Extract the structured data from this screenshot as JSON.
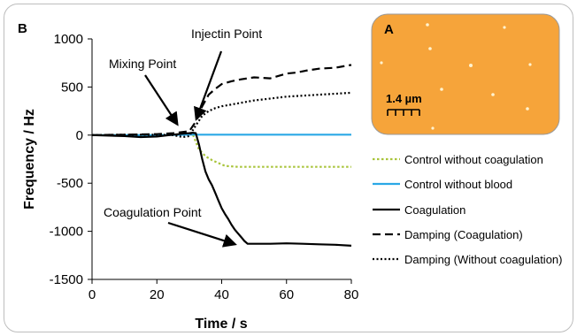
{
  "figure": {
    "panel_b_label": "B",
    "panel_a_label": "A"
  },
  "chart_data": {
    "type": "line",
    "title": "",
    "xlabel": "Time / s",
    "ylabel": "Frequency / Hz",
    "xlim": [
      0,
      80
    ],
    "ylim": [
      -1500,
      1000
    ],
    "xticks": [
      0,
      20,
      40,
      60,
      80
    ],
    "yticks": [
      -1500,
      -1000,
      -500,
      0,
      500,
      1000
    ],
    "grid": false,
    "legend_position": "right",
    "series": [
      {
        "name": "Control without coagulation",
        "color": "#a8c43a",
        "style": "dotted",
        "x": [
          0,
          10,
          20,
          25,
          28,
          31,
          33,
          35,
          37,
          39,
          41,
          45,
          50,
          60,
          70,
          80
        ],
        "y": [
          0,
          0,
          0,
          5,
          10,
          15,
          -150,
          -220,
          -260,
          -290,
          -320,
          -330,
          -330,
          -330,
          -330,
          -330
        ]
      },
      {
        "name": "Control without blood",
        "color": "#2aa8e6",
        "style": "solid",
        "x": [
          0,
          20,
          31,
          40,
          60,
          80
        ],
        "y": [
          0,
          0,
          5,
          5,
          5,
          5
        ]
      },
      {
        "name": "Coagulation",
        "color": "#000000",
        "style": "solid",
        "x": [
          0,
          10,
          15,
          20,
          25,
          28,
          30,
          31,
          32,
          33,
          34,
          35,
          36,
          37,
          38,
          39,
          40,
          41,
          42,
          43,
          44,
          45,
          46,
          47,
          48,
          50,
          55,
          60,
          65,
          70,
          75,
          80
        ],
        "y": [
          0,
          -10,
          -20,
          -15,
          5,
          15,
          20,
          25,
          20,
          -100,
          -250,
          -380,
          -460,
          -520,
          -600,
          -680,
          -760,
          -820,
          -870,
          -930,
          -980,
          -1020,
          -1060,
          -1100,
          -1130,
          -1130,
          -1130,
          -1125,
          -1130,
          -1135,
          -1140,
          -1150
        ]
      },
      {
        "name": "Damping (Coagulation)",
        "color": "#000000",
        "style": "dashed",
        "x": [
          0,
          10,
          20,
          25,
          30,
          32,
          34,
          36,
          38,
          40,
          43,
          46,
          50,
          55,
          60,
          63,
          66,
          70,
          75,
          80
        ],
        "y": [
          0,
          5,
          10,
          20,
          40,
          140,
          300,
          420,
          480,
          530,
          560,
          580,
          600,
          590,
          640,
          650,
          670,
          690,
          700,
          730
        ]
      },
      {
        "name": "Damping (Without coagulation)",
        "color": "#000000",
        "style": "dotted",
        "x": [
          0,
          10,
          20,
          25,
          28,
          30,
          32,
          34,
          36,
          38,
          40,
          45,
          50,
          55,
          60,
          65,
          70,
          75,
          80
        ],
        "y": [
          0,
          5,
          5,
          0,
          -20,
          -10,
          100,
          200,
          250,
          280,
          300,
          330,
          360,
          380,
          400,
          410,
          420,
          430,
          440
        ]
      }
    ],
    "annotations": [
      {
        "text": "Mixing Point",
        "x": 26,
        "y": 25
      },
      {
        "text": "Injectin Point",
        "x": 31,
        "y": 35
      },
      {
        "text": "Coagulation Point",
        "x": 43,
        "y": -1120
      }
    ]
  },
  "inset": {
    "label": "A",
    "scale_label": "1.4 µm",
    "background_color": "#f6a43a"
  }
}
